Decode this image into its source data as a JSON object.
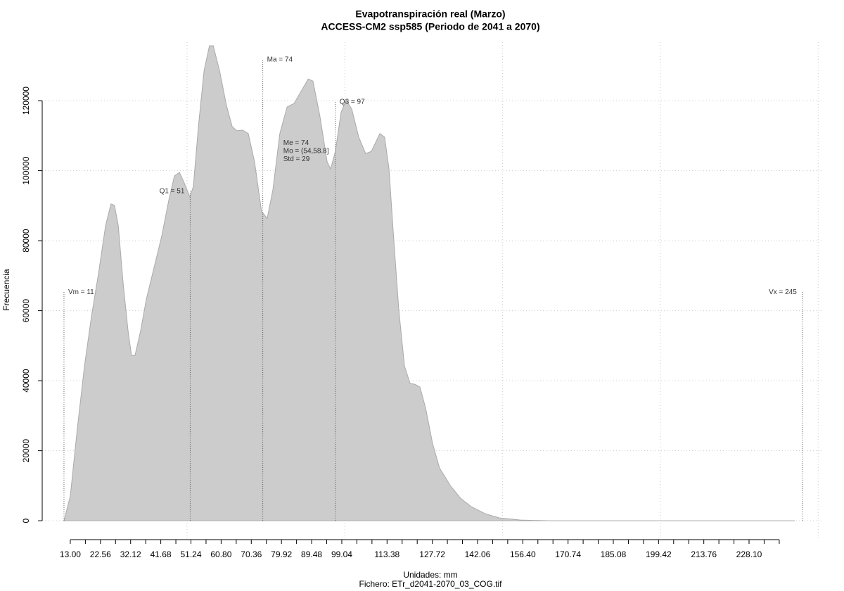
{
  "chart_data": {
    "type": "area",
    "title": "Evapotranspiración real (Marzo)",
    "subtitle": "ACCESS-CM2 ssp585 (Periodo de 2041 a 2070)",
    "xlabel": "Unidades: mm",
    "caption": "Fichero: ETr_d2041-2070_03_COG.tif",
    "ylabel": "Frecuencia",
    "color": "#cccccc",
    "x": [
      11.0,
      13.0,
      15.2,
      17.5,
      19.7,
      21.9,
      24.2,
      25.9,
      27.0,
      28.2,
      29.7,
      31.3,
      32.4,
      33.5,
      35.3,
      37.1,
      39.3,
      42.0,
      44.2,
      46.0,
      47.6,
      49.1,
      50.9,
      52.0,
      53.6,
      55.4,
      57.1,
      58.3,
      60.3,
      62.5,
      64.3,
      65.8,
      67.6,
      69.4,
      71.4,
      73.6,
      75.4,
      77.2,
      79.4,
      81.7,
      83.9,
      86.1,
      88.4,
      89.9,
      92.1,
      94.4,
      95.5,
      97.0,
      98.8,
      100.4,
      102.2,
      104.4,
      106.6,
      108.4,
      111.1,
      112.6,
      114.0,
      115.5,
      117.1,
      118.9,
      120.7,
      122.2,
      123.8,
      125.6,
      127.8,
      130.0,
      133.4,
      136.7,
      140.1,
      144.5,
      149.0,
      155.7,
      164.6,
      242.6
    ],
    "values": [
      0,
      7000,
      26100,
      44200,
      58300,
      70400,
      84400,
      90500,
      90100,
      84400,
      68300,
      54300,
      47200,
      47200,
      54300,
      63300,
      71400,
      81400,
      91500,
      98500,
      99500,
      96500,
      92500,
      95500,
      112600,
      128600,
      135700,
      135700,
      128600,
      118600,
      112600,
      111400,
      111600,
      110600,
      102500,
      88400,
      86400,
      94500,
      110600,
      118200,
      119200,
      122600,
      126200,
      125600,
      115600,
      102500,
      100500,
      105500,
      116600,
      120200,
      117600,
      109600,
      104900,
      105500,
      110600,
      109600,
      100500,
      80400,
      60300,
      44200,
      39200,
      39000,
      38200,
      32200,
      22100,
      15100,
      10100,
      6400,
      4000,
      2000,
      800,
      200,
      0,
      0
    ],
    "xlim": [
      4.1,
      251.5
    ],
    "ylim": [
      -5400,
      136700
    ],
    "xticks": [
      {
        "value": 13.0,
        "label": "13.00"
      },
      {
        "value": 22.56,
        "label": "22.56"
      },
      {
        "value": 32.12,
        "label": "32.12"
      },
      {
        "value": 41.68,
        "label": "41.68"
      },
      {
        "value": 51.24,
        "label": "51.24"
      },
      {
        "value": 60.8,
        "label": "60.80"
      },
      {
        "value": 70.36,
        "label": "70.36"
      },
      {
        "value": 79.92,
        "label": "79.92"
      },
      {
        "value": 89.48,
        "label": "89.48"
      },
      {
        "value": 99.04,
        "label": "99.04"
      },
      {
        "value": 108.6,
        "label": null
      },
      {
        "value": 113.38,
        "label": "113.38"
      },
      {
        "value": 127.72,
        "label": "127.72"
      },
      {
        "value": 142.06,
        "label": "142.06"
      },
      {
        "value": 156.4,
        "label": "156.40"
      },
      {
        "value": 170.74,
        "label": "170.74"
      },
      {
        "value": 185.08,
        "label": "185.08"
      },
      {
        "value": 199.42,
        "label": "199.42"
      },
      {
        "value": 213.76,
        "label": "213.76"
      },
      {
        "value": 228.1,
        "label": "228.10"
      }
    ],
    "xminorticks": [
      17.78,
      27.34,
      36.9,
      46.46,
      56.02,
      65.58,
      75.14,
      84.7,
      94.26,
      103.82,
      118.16,
      122.94,
      132.5,
      137.28,
      146.84,
      151.62,
      161.18,
      165.96,
      175.52,
      180.3,
      189.86,
      194.64,
      204.2,
      208.98,
      218.54,
      223.32,
      232.88,
      237.66
    ],
    "xgrid": [
      50,
      100,
      150,
      200,
      250
    ],
    "yticks": [
      0,
      20000,
      40000,
      60000,
      80000,
      100000,
      120000
    ],
    "grid": true,
    "annotations": [
      {
        "label": "Vm = 11",
        "x": 11,
        "y": 65700,
        "align": "right"
      },
      {
        "label": "Q1 = 51",
        "x": 51,
        "y": 94500,
        "align": "left"
      },
      {
        "label": "Ma = 74",
        "x": 74,
        "y": 131700,
        "align": "right"
      },
      {
        "label": "Q3 = 97",
        "x": 97,
        "y": 120000,
        "align": "right"
      },
      {
        "label": "Vx = 245",
        "x": 245,
        "y": 65700,
        "align": "left"
      }
    ],
    "stats": {
      "x": 80.5,
      "y": 107900,
      "lines": [
        "Me = 74",
        "Mo = (54,58.8]",
        "Std = 29"
      ]
    }
  }
}
